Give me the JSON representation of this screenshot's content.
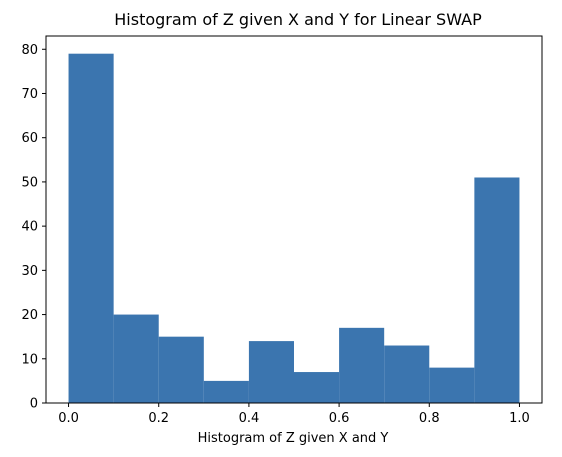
{
  "chart_data": {
    "type": "bar",
    "title": "Histogram of Z given X and Y for Linear SWAP",
    "xlabel": "Histogram of Z given X and Y",
    "ylabel": "",
    "bin_edges": [
      0.0,
      0.1,
      0.2,
      0.3,
      0.4,
      0.5,
      0.6,
      0.7,
      0.8,
      0.9,
      1.0
    ],
    "values": [
      79,
      20,
      15,
      5,
      14,
      7,
      17,
      13,
      8,
      51
    ],
    "xlim": [
      -0.05,
      1.05
    ],
    "ylim": [
      0,
      83
    ],
    "xticks": [
      0.0,
      0.2,
      0.4,
      0.6,
      0.8,
      1.0
    ],
    "xtick_labels": [
      "0.0",
      "0.2",
      "0.4",
      "0.6",
      "0.8",
      "1.0"
    ],
    "yticks": [
      0,
      10,
      20,
      30,
      40,
      50,
      60,
      70,
      80
    ],
    "ytick_labels": [
      "0",
      "10",
      "20",
      "30",
      "40",
      "50",
      "60",
      "70",
      "80"
    ],
    "grid": false,
    "bar_color": "#3b75af"
  }
}
